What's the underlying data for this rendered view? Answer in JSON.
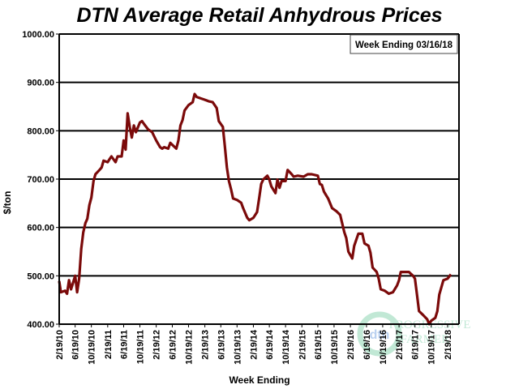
{
  "chart_data": {
    "type": "line",
    "title": "DTN Average Retail Anhydrous Prices",
    "xlabel": "Week Ending",
    "ylabel": "$/ton",
    "annotation": "Week Ending 03/16/18",
    "ylim": [
      400,
      1000
    ],
    "xlim": [
      "2010-02-19",
      "2018-03-16"
    ],
    "grid": "horizontal",
    "y_ticks": [
      "400.00",
      "500.00",
      "600.00",
      "700.00",
      "800.00",
      "900.00",
      "1000.00"
    ],
    "x_ticks": [
      "2/19/10",
      "6/19/10",
      "10/19/10",
      "2/19/11",
      "6/19/11",
      "10/19/11",
      "2/19/12",
      "6/19/12",
      "10/19/12",
      "2/19/13",
      "6/19/13",
      "10/19/13",
      "2/19/14",
      "6/19/14",
      "10/19/14",
      "2/19/15",
      "6/19/15",
      "10/19/15",
      "2/19/16",
      "6/19/16",
      "10/19/16",
      "2/19/17",
      "6/19/17",
      "10/19/17",
      "2/19/18"
    ],
    "line_color": "#7b0a0a",
    "series": [
      {
        "points": [
          [
            "2010-02-19",
            489
          ],
          [
            "2010-03-04",
            466
          ],
          [
            "2010-04-04",
            469
          ],
          [
            "2010-04-19",
            463
          ],
          [
            "2010-05-04",
            491
          ],
          [
            "2010-05-19",
            472
          ],
          [
            "2010-06-19",
            500
          ],
          [
            "2010-07-04",
            466
          ],
          [
            "2010-07-19",
            494
          ],
          [
            "2010-08-04",
            556
          ],
          [
            "2010-08-19",
            590
          ],
          [
            "2010-09-04",
            609
          ],
          [
            "2010-09-19",
            618
          ],
          [
            "2010-10-04",
            646
          ],
          [
            "2010-10-19",
            662
          ],
          [
            "2010-11-04",
            696
          ],
          [
            "2010-11-19",
            710
          ],
          [
            "2010-12-19",
            719
          ],
          [
            "2011-01-04",
            724
          ],
          [
            "2011-01-19",
            738
          ],
          [
            "2011-02-19",
            735
          ],
          [
            "2011-03-04",
            741
          ],
          [
            "2011-03-19",
            747
          ],
          [
            "2011-04-19",
            735
          ],
          [
            "2011-05-04",
            747
          ],
          [
            "2011-06-04",
            747
          ],
          [
            "2011-06-19",
            780
          ],
          [
            "2011-07-04",
            761
          ],
          [
            "2011-07-19",
            836
          ],
          [
            "2011-08-04",
            808
          ],
          [
            "2011-08-19",
            786
          ],
          [
            "2011-09-04",
            811
          ],
          [
            "2011-09-19",
            797
          ],
          [
            "2011-10-19",
            817
          ],
          [
            "2011-11-04",
            820
          ],
          [
            "2011-11-19",
            814
          ],
          [
            "2011-12-19",
            803
          ],
          [
            "2012-01-19",
            797
          ],
          [
            "2012-02-19",
            780
          ],
          [
            "2012-03-19",
            766
          ],
          [
            "2012-04-04",
            763
          ],
          [
            "2012-04-19",
            766
          ],
          [
            "2012-05-19",
            763
          ],
          [
            "2012-06-04",
            775
          ],
          [
            "2012-07-19",
            763
          ],
          [
            "2012-08-04",
            780
          ],
          [
            "2012-08-19",
            811
          ],
          [
            "2012-09-04",
            822
          ],
          [
            "2012-09-19",
            842
          ],
          [
            "2012-10-19",
            853
          ],
          [
            "2012-11-19",
            859
          ],
          [
            "2012-12-04",
            876
          ],
          [
            "2012-12-19",
            870
          ],
          [
            "2013-01-19",
            867
          ],
          [
            "2013-02-19",
            864
          ],
          [
            "2013-03-19",
            861
          ],
          [
            "2013-04-19",
            859
          ],
          [
            "2013-05-19",
            847
          ],
          [
            "2013-06-04",
            820
          ],
          [
            "2013-07-04",
            808
          ],
          [
            "2013-07-19",
            769
          ],
          [
            "2013-08-04",
            724
          ],
          [
            "2013-08-19",
            696
          ],
          [
            "2013-09-04",
            679
          ],
          [
            "2013-09-19",
            660
          ],
          [
            "2013-10-19",
            657
          ],
          [
            "2013-11-19",
            651
          ],
          [
            "2013-12-04",
            640
          ],
          [
            "2014-01-04",
            620
          ],
          [
            "2014-01-19",
            615
          ],
          [
            "2014-02-19",
            620
          ],
          [
            "2014-03-19",
            632
          ],
          [
            "2014-04-04",
            662
          ],
          [
            "2014-04-19",
            690
          ],
          [
            "2014-05-04",
            699
          ],
          [
            "2014-06-04",
            707
          ],
          [
            "2014-06-19",
            699
          ],
          [
            "2014-07-04",
            685
          ],
          [
            "2014-08-04",
            671
          ],
          [
            "2014-08-19",
            699
          ],
          [
            "2014-09-04",
            682
          ],
          [
            "2014-09-19",
            696
          ],
          [
            "2014-10-19",
            696
          ],
          [
            "2014-11-04",
            719
          ],
          [
            "2014-12-04",
            710
          ],
          [
            "2014-12-19",
            705
          ],
          [
            "2015-01-19",
            707
          ],
          [
            "2015-03-04",
            705
          ],
          [
            "2015-04-04",
            710
          ],
          [
            "2015-05-04",
            710
          ],
          [
            "2015-06-19",
            707
          ],
          [
            "2015-07-04",
            690
          ],
          [
            "2015-07-19",
            688
          ],
          [
            "2015-08-04",
            674
          ],
          [
            "2015-09-04",
            660
          ],
          [
            "2015-10-04",
            640
          ],
          [
            "2015-11-04",
            634
          ],
          [
            "2015-12-04",
            626
          ],
          [
            "2016-01-04",
            590
          ],
          [
            "2016-01-19",
            578
          ],
          [
            "2016-02-04",
            550
          ],
          [
            "2016-03-04",
            536
          ],
          [
            "2016-03-19",
            562
          ],
          [
            "2016-04-19",
            587
          ],
          [
            "2016-05-19",
            587
          ],
          [
            "2016-06-04",
            567
          ],
          [
            "2016-07-04",
            562
          ],
          [
            "2016-07-19",
            548
          ],
          [
            "2016-08-04",
            517
          ],
          [
            "2016-09-04",
            508
          ],
          [
            "2016-09-19",
            494
          ],
          [
            "2016-10-04",
            472
          ],
          [
            "2016-11-04",
            469
          ],
          [
            "2016-12-04",
            463
          ],
          [
            "2017-01-04",
            466
          ],
          [
            "2017-02-04",
            480
          ],
          [
            "2017-02-19",
            491
          ],
          [
            "2017-03-04",
            508
          ],
          [
            "2017-05-04",
            508
          ],
          [
            "2017-06-04",
            500
          ],
          [
            "2017-06-19",
            494
          ],
          [
            "2017-07-04",
            461
          ],
          [
            "2017-07-19",
            427
          ],
          [
            "2017-08-19",
            419
          ],
          [
            "2017-09-19",
            410
          ],
          [
            "2017-10-04",
            400
          ],
          [
            "2017-10-19",
            407
          ],
          [
            "2017-11-19",
            413
          ],
          [
            "2017-12-04",
            427
          ],
          [
            "2017-12-19",
            461
          ],
          [
            "2018-01-04",
            477
          ],
          [
            "2018-01-19",
            491
          ],
          [
            "2018-02-19",
            494
          ],
          [
            "2018-03-16",
            503
          ]
        ]
      }
    ]
  },
  "watermark": {
    "text": "DTN The Progressive Farmer"
  }
}
